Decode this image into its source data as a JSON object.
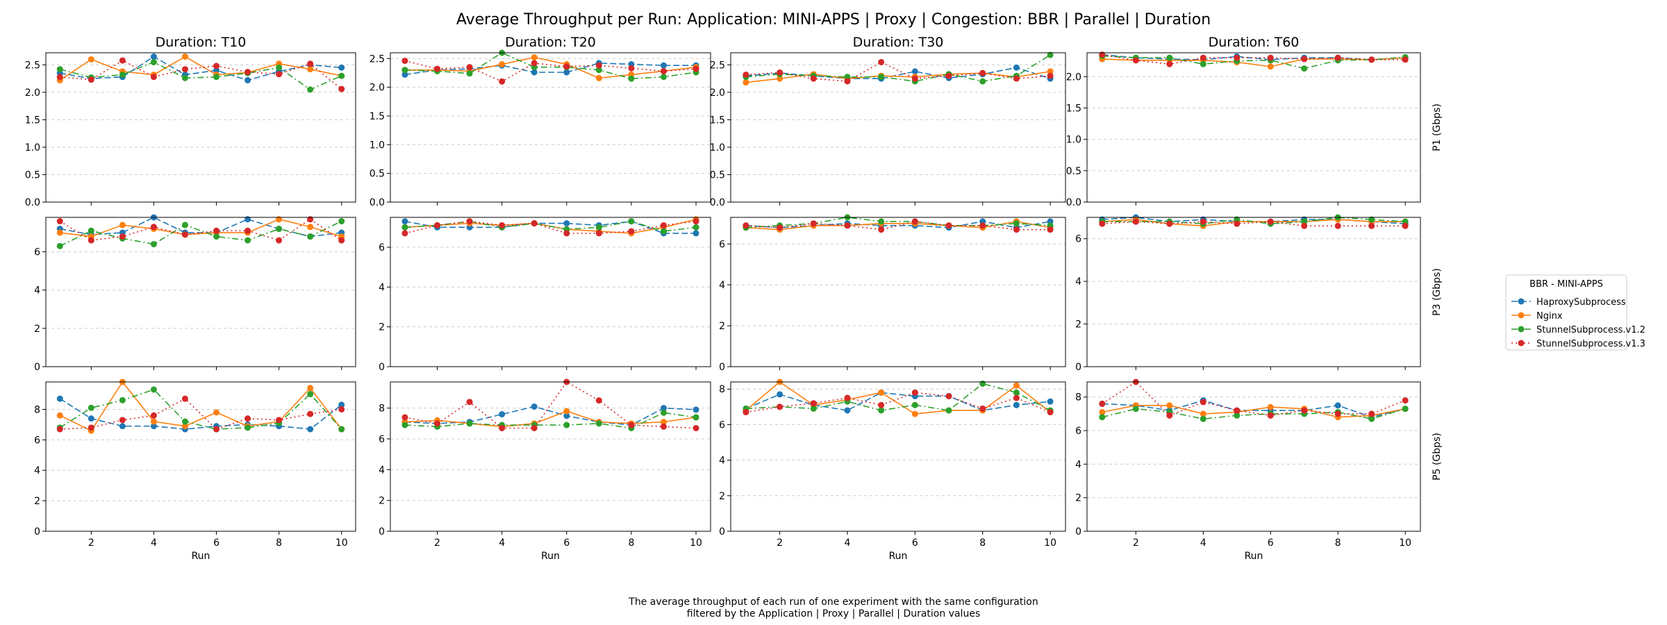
{
  "title": "Average Throughput per Run: Application: MINI-APPS | Proxy | Congestion: BBR | Parallel | Duration",
  "caption_lines": [
    "The average throughput of each run of one experiment with the same configuration",
    "filtered by the Application | Proxy | Parallel | Duration values"
  ],
  "legend": {
    "title": "BBR - MINI-APPS",
    "placement": "right",
    "entries": [
      "HaproxySubprocess",
      "Nginx",
      "StunnelSubprocess.v1.2",
      "StunnelSubprocess.v1.3"
    ]
  },
  "series_styles": [
    {
      "name": "HaproxySubprocess",
      "color": "#1f77b4",
      "dash": "dashed"
    },
    {
      "name": "Nginx",
      "color": "#ff7f0e",
      "dash": "solid"
    },
    {
      "name": "StunnelSubprocess.v1.2",
      "color": "#2ca02c",
      "dash": "dashdot"
    },
    {
      "name": "StunnelSubprocess.v1.3",
      "color": "#d62728",
      "dash": "dotted"
    }
  ],
  "chart_data": {
    "type": "line",
    "grid": "y-dashed",
    "x": [
      1,
      2,
      3,
      4,
      5,
      6,
      7,
      8,
      9,
      10
    ],
    "xlabel": "Run",
    "xticks": [
      2,
      4,
      6,
      8,
      10
    ],
    "columns": [
      "Duration: T10",
      "Duration: T20",
      "Duration: T30",
      "Duration: T60"
    ],
    "rows": [
      {
        "ylabel": "P1 (Gbps)",
        "panels": [
          {
            "ylim": [
              0,
              2.72
            ],
            "yticks": [
              0.0,
              0.5,
              1.0,
              1.5,
              2.0,
              2.5
            ],
            "ytick_labels": [
              "0.0",
              "0.5",
              "1.0",
              "1.5",
              "2.0",
              "2.5"
            ],
            "series": [
              [
                2.35,
                2.25,
                2.28,
                2.65,
                2.32,
                2.4,
                2.22,
                2.38,
                2.5,
                2.45
              ],
              [
                2.22,
                2.6,
                2.38,
                2.32,
                2.65,
                2.32,
                2.36,
                2.52,
                2.42,
                2.3
              ],
              [
                2.42,
                2.27,
                2.32,
                2.55,
                2.26,
                2.28,
                2.35,
                2.45,
                2.05,
                2.3
              ],
              [
                2.28,
                2.23,
                2.58,
                2.28,
                2.42,
                2.48,
                2.37,
                2.33,
                2.52,
                2.06
              ]
            ]
          },
          {
            "ylim": [
              0,
              2.6
            ],
            "yticks": [
              0.0,
              0.5,
              1.0,
              1.5,
              2.0,
              2.5
            ],
            "ytick_labels": [
              "0.0",
              "0.5",
              "1.0",
              "1.5",
              "2.0",
              "2.5"
            ],
            "series": [
              [
                2.22,
                2.3,
                2.32,
                2.38,
                2.26,
                2.26,
                2.42,
                2.4,
                2.38,
                2.38
              ],
              [
                2.3,
                2.3,
                2.28,
                2.4,
                2.52,
                2.4,
                2.16,
                2.22,
                2.28,
                2.35
              ],
              [
                2.3,
                2.28,
                2.24,
                2.6,
                2.35,
                2.35,
                2.3,
                2.15,
                2.18,
                2.26
              ],
              [
                2.46,
                2.32,
                2.35,
                2.1,
                2.42,
                2.36,
                2.38,
                2.33,
                2.28,
                2.32
              ]
            ]
          },
          {
            "ylim": [
              0,
              2.72
            ],
            "yticks": [
              0.0,
              0.5,
              1.0,
              1.5,
              2.0,
              2.5
            ],
            "ytick_labels": [
              "0.0",
              "0.5",
              "1.0",
              "1.5",
              "2.0",
              "2.5"
            ],
            "series": [
              [
                2.3,
                2.35,
                2.3,
                2.25,
                2.25,
                2.38,
                2.26,
                2.33,
                2.45,
                2.25
              ],
              [
                2.18,
                2.25,
                2.33,
                2.25,
                2.3,
                2.28,
                2.33,
                2.35,
                2.28,
                2.38
              ],
              [
                2.28,
                2.33,
                2.3,
                2.28,
                2.28,
                2.2,
                2.33,
                2.2,
                2.3,
                2.68
              ],
              [
                2.32,
                2.36,
                2.25,
                2.2,
                2.55,
                2.25,
                2.3,
                2.35,
                2.25,
                2.3
              ]
            ]
          },
          {
            "ylim": [
              0,
              2.38
            ],
            "yticks": [
              0.0,
              0.5,
              1.0,
              1.5,
              2.0
            ],
            "ytick_labels": [
              "0.0",
              "0.5",
              "1.0",
              "1.5",
              "2.0"
            ],
            "series": [
              [
                2.35,
                2.3,
                2.28,
                2.27,
                2.32,
                2.27,
                2.3,
                2.3,
                2.27,
                2.3
              ],
              [
                2.28,
                2.26,
                2.26,
                2.26,
                2.23,
                2.16,
                2.28,
                2.28,
                2.27,
                2.3
              ],
              [
                2.33,
                2.3,
                2.3,
                2.2,
                2.25,
                2.26,
                2.13,
                2.26,
                2.27,
                2.31
              ],
              [
                2.35,
                2.26,
                2.2,
                2.3,
                2.3,
                2.3,
                2.28,
                2.3,
                2.27,
                2.27
              ]
            ]
          }
        ]
      },
      {
        "ylabel": "P3 (Gbps)",
        "panels": [
          {
            "ylim": [
              0,
              7.8
            ],
            "yticks": [
              0,
              2,
              4,
              6
            ],
            "ytick_labels": [
              "0",
              "2",
              "4",
              "6"
            ],
            "series": [
              [
                7.2,
                6.9,
                7.0,
                7.8,
                7.0,
                7.0,
                7.7,
                7.2,
                6.8,
                7.0
              ],
              [
                7.0,
                6.8,
                7.4,
                7.2,
                6.9,
                7.0,
                7.0,
                7.7,
                7.3,
                6.8
              ],
              [
                6.3,
                7.1,
                6.7,
                6.4,
                7.4,
                6.8,
                6.6,
                7.2,
                6.8,
                7.6
              ],
              [
                7.6,
                6.6,
                6.8,
                7.3,
                6.9,
                7.1,
                7.1,
                6.6,
                7.7,
                6.6
              ]
            ]
          },
          {
            "ylim": [
              0,
              7.5
            ],
            "yticks": [
              0,
              2,
              4,
              6
            ],
            "ytick_labels": [
              "0",
              "2",
              "4",
              "6"
            ],
            "series": [
              [
                7.3,
                7.0,
                7.0,
                7.0,
                7.2,
                7.2,
                7.1,
                7.3,
                6.7,
                6.7
              ],
              [
                7.0,
                7.1,
                7.2,
                7.1,
                7.2,
                6.9,
                6.8,
                6.7,
                7.0,
                7.4
              ],
              [
                7.0,
                7.1,
                7.3,
                7.0,
                7.2,
                6.9,
                7.0,
                7.3,
                6.8,
                7.0
              ],
              [
                6.7,
                7.1,
                7.3,
                7.1,
                7.2,
                6.7,
                6.7,
                6.8,
                7.1,
                7.3
              ]
            ]
          },
          {
            "ylim": [
              0,
              7.3
            ],
            "yticks": [
              0,
              2,
              4,
              6
            ],
            "ytick_labels": [
              "0",
              "2",
              "4",
              "6"
            ],
            "series": [
              [
                6.9,
                6.8,
                6.9,
                7.0,
                6.9,
                6.9,
                6.8,
                7.1,
                6.8,
                7.1
              ],
              [
                6.8,
                6.7,
                6.9,
                6.9,
                7.0,
                7.0,
                6.9,
                6.8,
                7.1,
                6.8
              ],
              [
                6.8,
                6.9,
                7.0,
                7.3,
                7.1,
                7.1,
                6.9,
                6.9,
                7.0,
                6.9
              ],
              [
                6.9,
                6.8,
                7.0,
                6.9,
                6.7,
                7.1,
                6.9,
                6.9,
                6.7,
                6.7
              ]
            ]
          },
          {
            "ylim": [
              0,
              7.0
            ],
            "yticks": [
              0,
              2,
              4,
              6
            ],
            "ytick_labels": [
              "0",
              "2",
              "4",
              "6"
            ],
            "series": [
              [
                6.9,
                7.0,
                6.8,
                6.9,
                6.8,
                6.8,
                6.9,
                6.9,
                6.8,
                6.7
              ],
              [
                6.8,
                6.9,
                6.7,
                6.6,
                6.8,
                6.8,
                6.8,
                6.9,
                6.8,
                6.8
              ],
              [
                6.8,
                6.8,
                6.8,
                6.7,
                6.9,
                6.7,
                6.8,
                7.0,
                6.9,
                6.8
              ],
              [
                6.7,
                6.8,
                6.7,
                6.8,
                6.7,
                6.8,
                6.6,
                6.6,
                6.6,
                6.6
              ]
            ]
          }
        ]
      },
      {
        "ylabel": "P5 (Gbps)",
        "panels": [
          {
            "ylim": [
              0,
              9.8
            ],
            "yticks": [
              0,
              2,
              4,
              6,
              8
            ],
            "ytick_labels": [
              "0",
              "2",
              "4",
              "6",
              "8"
            ],
            "series": [
              [
                8.7,
                7.4,
                6.9,
                6.9,
                6.7,
                6.9,
                7.0,
                6.9,
                6.7,
                8.3
              ],
              [
                7.6,
                6.6,
                9.8,
                7.2,
                6.9,
                7.8,
                6.9,
                7.2,
                9.4,
                6.7
              ],
              [
                6.8,
                8.1,
                8.6,
                9.3,
                7.2,
                6.7,
                6.8,
                7.1,
                9.0,
                6.7
              ],
              [
                6.7,
                6.8,
                7.3,
                7.6,
                8.7,
                6.7,
                7.4,
                7.3,
                7.7,
                8.0
              ]
            ]
          },
          {
            "ylim": [
              0,
              9.7
            ],
            "yticks": [
              0,
              2,
              4,
              6,
              8
            ],
            "ytick_labels": [
              "0",
              "2",
              "4",
              "6",
              "8"
            ],
            "series": [
              [
                7.1,
                7.0,
                7.1,
                7.6,
                8.1,
                7.5,
                7.1,
                6.9,
                8.0,
                7.9
              ],
              [
                7.1,
                7.2,
                7.0,
                6.8,
                7.0,
                7.8,
                7.1,
                7.0,
                7.1,
                7.4
              ],
              [
                6.9,
                6.8,
                7.0,
                6.9,
                6.9,
                6.9,
                7.0,
                6.7,
                7.7,
                7.4
              ],
              [
                7.4,
                7.0,
                8.4,
                6.7,
                6.7,
                9.7,
                8.5,
                6.9,
                6.8,
                6.7
              ]
            ]
          },
          {
            "ylim": [
              0,
              8.4
            ],
            "yticks": [
              0,
              2,
              4,
              6,
              8
            ],
            "ytick_labels": [
              "0",
              "2",
              "4",
              "6",
              "8"
            ],
            "series": [
              [
                6.9,
                7.7,
                7.1,
                6.8,
                7.8,
                7.6,
                7.6,
                6.8,
                7.1,
                7.3
              ],
              [
                6.8,
                8.4,
                7.1,
                7.4,
                7.8,
                6.6,
                6.8,
                6.8,
                8.2,
                6.7
              ],
              [
                6.9,
                7.0,
                6.9,
                7.3,
                6.8,
                7.1,
                6.8,
                8.3,
                7.8,
                6.8
              ],
              [
                6.7,
                7.0,
                7.2,
                7.5,
                7.1,
                7.8,
                7.6,
                6.9,
                7.5,
                6.7
              ]
            ]
          },
          {
            "ylim": [
              0,
              8.9
            ],
            "yticks": [
              0,
              2,
              4,
              6,
              8
            ],
            "ytick_labels": [
              "0",
              "2",
              "4",
              "6",
              "8"
            ],
            "series": [
              [
                7.6,
                7.5,
                7.2,
                7.8,
                7.2,
                7.2,
                7.2,
                7.5,
                6.8,
                7.3
              ],
              [
                7.1,
                7.5,
                7.5,
                7.0,
                7.1,
                7.4,
                7.3,
                6.8,
                6.9,
                7.3
              ],
              [
                6.8,
                7.3,
                7.1,
                6.7,
                6.9,
                7.0,
                7.0,
                7.1,
                6.7,
                7.3
              ],
              [
                7.6,
                8.9,
                6.9,
                7.7,
                7.2,
                6.9,
                7.2,
                7.0,
                7.0,
                7.8
              ]
            ]
          }
        ]
      }
    ]
  }
}
